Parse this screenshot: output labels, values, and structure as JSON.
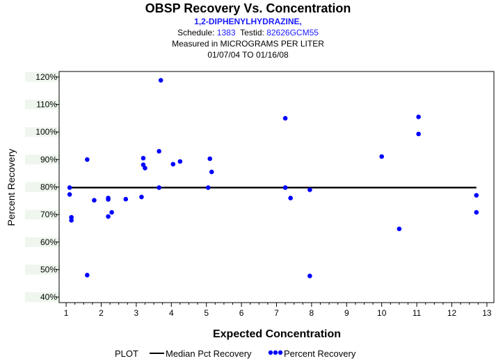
{
  "header": {
    "title": "OBSP Recovery Vs. Concentration",
    "compound": "1,2-DIPHENYLHYDRAZINE,",
    "schedule_label": "Schedule:",
    "schedule_value": "1383",
    "testid_label": "Testid:",
    "testid_value": "82626GCM55",
    "measured": "Measured in  MICROGRAMS PER LITER",
    "date_range": "01/07/04 TO 01/16/08"
  },
  "colors": {
    "points": "#0000ff",
    "median_line": "#000000",
    "grid_band": "#eef6ee"
  },
  "legend": {
    "prefix": "PLOT",
    "line_label": "Median Pct Recovery",
    "points_label": "Percent Recovery"
  },
  "chart_data": {
    "type": "scatter",
    "title": "OBSP Recovery Vs. Concentration",
    "xlabel": "Expected Concentration",
    "ylabel": "Percent Recovery",
    "xlim": [
      0.8,
      13.2
    ],
    "ylim": [
      38,
      122
    ],
    "x_ticks": [
      1,
      2,
      3,
      4,
      5,
      6,
      7,
      8,
      9,
      10,
      11,
      12,
      13
    ],
    "x_tick_labels": [
      "1",
      "2",
      "3",
      "4",
      "5",
      "6",
      "7",
      "8",
      "9",
      "10",
      "11",
      "12",
      "13"
    ],
    "y_ticks": [
      40,
      50,
      60,
      70,
      80,
      90,
      100,
      110,
      120
    ],
    "y_tick_labels": [
      "40%",
      "50%",
      "60%",
      "70%",
      "80%",
      "90%",
      "100%",
      "110%",
      "120%"
    ],
    "median_recovery": 79.8,
    "median_x_range": [
      1.1,
      12.7
    ],
    "series": [
      {
        "name": "Percent Recovery",
        "points": [
          [
            1.1,
            79.8
          ],
          [
            1.1,
            77.3
          ],
          [
            1.15,
            69.0
          ],
          [
            1.15,
            67.9
          ],
          [
            1.6,
            90.0
          ],
          [
            1.6,
            48.0
          ],
          [
            1.8,
            75.2
          ],
          [
            2.2,
            76.0
          ],
          [
            2.2,
            75.5
          ],
          [
            2.2,
            69.3
          ],
          [
            2.3,
            70.8
          ],
          [
            2.7,
            75.6
          ],
          [
            3.15,
            76.4
          ],
          [
            3.2,
            88.1
          ],
          [
            3.2,
            90.5
          ],
          [
            3.25,
            86.9
          ],
          [
            3.65,
            93.0
          ],
          [
            3.65,
            79.8
          ],
          [
            3.7,
            118.8
          ],
          [
            4.05,
            88.3
          ],
          [
            4.25,
            89.3
          ],
          [
            5.05,
            79.8
          ],
          [
            5.1,
            90.3
          ],
          [
            5.15,
            85.5
          ],
          [
            7.25,
            105.0
          ],
          [
            7.25,
            79.8
          ],
          [
            7.4,
            76.0
          ],
          [
            7.95,
            79.0
          ],
          [
            7.95,
            47.7
          ],
          [
            10.0,
            91.1
          ],
          [
            10.5,
            64.8
          ],
          [
            11.05,
            105.5
          ],
          [
            11.05,
            99.3
          ],
          [
            12.7,
            77.0
          ],
          [
            12.7,
            70.8
          ]
        ]
      }
    ]
  }
}
